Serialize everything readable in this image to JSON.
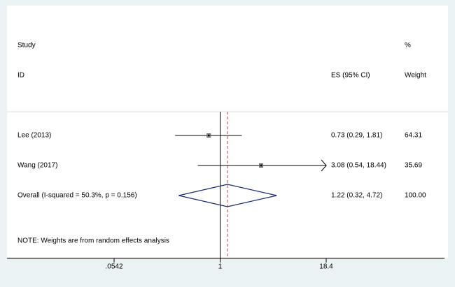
{
  "chart_data": {
    "type": "forest",
    "headers": {
      "study": "Study",
      "id": "ID",
      "es": "ES (95% CI)",
      "pct": "%",
      "weight": "Weight"
    },
    "studies": [
      {
        "name": "Lee (2013)",
        "es": 0.73,
        "lower": 0.29,
        "upper": 1.81,
        "label": "0.73 (0.29, 1.81)",
        "weight": "64.31"
      },
      {
        "name": "Wang (2017)",
        "es": 3.08,
        "lower": 0.54,
        "upper": 18.44,
        "label": "3.08 (0.54, 18.44)",
        "weight": "35.69"
      }
    ],
    "overall": {
      "name": "Overall  (I-squared = 50.3%, p = 0.156)",
      "es": 1.22,
      "lower": 0.32,
      "upper": 4.72,
      "label": "1.22 (0.32, 4.72)",
      "weight": "100.00"
    },
    "note": "NOTE: Weights are from random effects analysis",
    "null_line": 1,
    "log_x": true,
    "xlim": [
      0.0542,
      18.4
    ],
    "xticks": [
      {
        "value": 0.0542,
        "label": ".0542"
      },
      1,
      18.4
    ]
  }
}
